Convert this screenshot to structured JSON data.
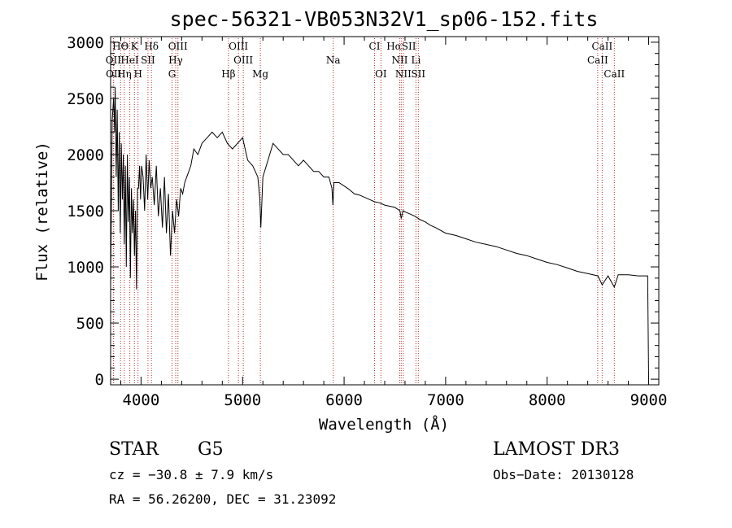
{
  "chart_data": {
    "type": "line",
    "title": "spec-56321-VB053N32V1_sp06-152.fits",
    "xlabel": "Wavelength (Å)",
    "ylabel": "Flux (relative)",
    "xlim": [
      3700,
      9100
    ],
    "ylim": [
      -50,
      3050
    ],
    "xticks": [
      4000,
      5000,
      6000,
      7000,
      8000,
      9000
    ],
    "xtick_labels": [
      "4000",
      "5000",
      "6000",
      "7000",
      "8000",
      "9000"
    ],
    "yticks": [
      0,
      500,
      1000,
      1500,
      2000,
      2500,
      3000
    ],
    "ytick_labels": [
      "0",
      "500",
      "1000",
      "1500",
      "2000",
      "2500",
      "3000"
    ],
    "series": [
      {
        "name": "flux",
        "x": [
          3700,
          3715,
          3730,
          3740,
          3745,
          3755,
          3765,
          3775,
          3785,
          3795,
          3805,
          3815,
          3825,
          3835,
          3845,
          3855,
          3865,
          3875,
          3885,
          3895,
          3905,
          3915,
          3925,
          3935,
          3945,
          3955,
          3965,
          3975,
          3985,
          3995,
          4005,
          4020,
          4035,
          4050,
          4065,
          4080,
          4095,
          4110,
          4130,
          4150,
          4170,
          4190,
          4210,
          4230,
          4250,
          4270,
          4290,
          4310,
          4330,
          4350,
          4370,
          4390,
          4410,
          4430,
          4450,
          4470,
          4490,
          4520,
          4560,
          4600,
          4650,
          4700,
          4750,
          4800,
          4850,
          4900,
          4950,
          5000,
          5050,
          5100,
          5150,
          5170,
          5180,
          5200,
          5250,
          5300,
          5350,
          5400,
          5450,
          5500,
          5550,
          5600,
          5650,
          5700,
          5750,
          5800,
          5850,
          5880,
          5890,
          5900,
          5950,
          6000,
          6050,
          6100,
          6150,
          6200,
          6250,
          6300,
          6350,
          6400,
          6450,
          6500,
          6550,
          6563,
          6580,
          6600,
          6650,
          6700,
          6750,
          6800,
          6850,
          6900,
          7000,
          7100,
          7200,
          7300,
          7400,
          7500,
          7600,
          7700,
          7800,
          7900,
          8000,
          8100,
          8200,
          8300,
          8400,
          8500,
          8542,
          8600,
          8662,
          8700,
          8800,
          8900,
          8990,
          9000
        ],
        "y": [
          800,
          2300,
          2500,
          2200,
          2600,
          1800,
          2400,
          1500,
          2200,
          1300,
          2100,
          1600,
          2000,
          1200,
          1900,
          1000,
          2000,
          1400,
          1800,
          900,
          1700,
          1300,
          1600,
          1100,
          1500,
          800,
          1700,
          1700,
          1900,
          1600,
          1900,
          1800,
          1500,
          2000,
          1600,
          1950,
          1700,
          1800,
          1550,
          1900,
          1450,
          1700,
          1350,
          1800,
          1300,
          1650,
          1100,
          1500,
          1300,
          1600,
          1450,
          1700,
          1650,
          1750,
          1800,
          1850,
          1900,
          2050,
          2000,
          2100,
          2150,
          2200,
          2150,
          2200,
          2100,
          2050,
          2100,
          2150,
          1950,
          1900,
          1800,
          1600,
          1350,
          1800,
          1950,
          2100,
          2050,
          2000,
          2000,
          1950,
          1900,
          1950,
          1900,
          1850,
          1850,
          1800,
          1800,
          1700,
          1550,
          1750,
          1750,
          1720,
          1690,
          1650,
          1640,
          1620,
          1600,
          1580,
          1570,
          1550,
          1540,
          1530,
          1500,
          1430,
          1500,
          1490,
          1470,
          1450,
          1420,
          1400,
          1370,
          1350,
          1300,
          1280,
          1250,
          1220,
          1200,
          1180,
          1150,
          1120,
          1100,
          1070,
          1040,
          1020,
          990,
          960,
          940,
          920,
          840,
          920,
          820,
          930,
          930,
          920,
          920,
          0
        ]
      }
    ],
    "lines": [
      {
        "label": "HΘ",
        "x": 3798
      },
      {
        "label": "K",
        "x": 3934
      },
      {
        "label": "Hδ",
        "x": 4102
      },
      {
        "label": "OIII",
        "x": 4363
      },
      {
        "label": "OIII",
        "x": 4959
      },
      {
        "label": "CI",
        "x": 6300
      },
      {
        "label": "HαSII",
        "x": 6563
      },
      {
        "label": "CaII",
        "x": 8542
      },
      {
        "label": "OII",
        "x": 3727
      },
      {
        "label": "HeI",
        "x": 3889
      },
      {
        "label": "SII",
        "x": 4068
      },
      {
        "label": "Hγ",
        "x": 4341
      },
      {
        "label": "OIII",
        "x": 5007
      },
      {
        "label": "Na",
        "x": 5893
      },
      {
        "label": "NII",
        "x": 6548
      },
      {
        "label": "Li",
        "x": 6708
      },
      {
        "label": "CaII",
        "x": 8498
      },
      {
        "label": "OII",
        "x": 3730
      },
      {
        "label": "Hη",
        "x": 3835
      },
      {
        "label": "H",
        "x": 3970
      },
      {
        "label": "G",
        "x": 4305
      },
      {
        "label": "Hβ",
        "x": 4861
      },
      {
        "label": "Mg",
        "x": 5175
      },
      {
        "label": "OI",
        "x": 6363
      },
      {
        "label": "NII",
        "x": 6583
      },
      {
        "label": "SII",
        "x": 6731
      },
      {
        "label": "CaII",
        "x": 8662
      }
    ]
  },
  "footer": {
    "object_type": "STAR",
    "subclass": "G5",
    "survey": "LAMOST DR3",
    "cz_text": "cz = −30.8 ± 7.9 km/s",
    "obs_date_text": "Obs−Date: 20130128",
    "coords_text": "RA =  56.26200, DEC =  31.23092"
  },
  "colors": {
    "line_marker": "#b03030",
    "axis": "#000000"
  }
}
